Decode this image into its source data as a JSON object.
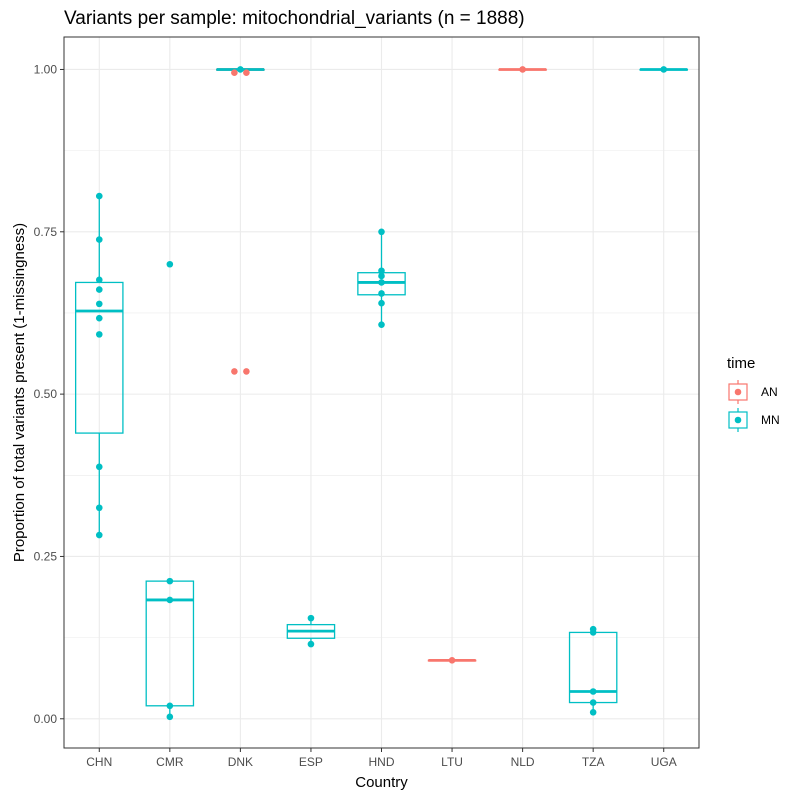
{
  "chart_data": {
    "type": "box",
    "title": "Variants per sample: mitochondrial_variants (n = 1888)",
    "xlabel": "Country",
    "ylabel": "Proportion of total variants present (1-missingness)",
    "categories": [
      "CHN",
      "CMR",
      "DNK",
      "ESP",
      "HND",
      "LTU",
      "NLD",
      "TZA",
      "UGA"
    ],
    "ylim": [
      -0.045,
      1.05
    ],
    "yticks": [
      0.0,
      0.25,
      0.5,
      0.75,
      1.0
    ],
    "ytick_labels": [
      "0.00",
      "0.25",
      "0.50",
      "0.75",
      "1.00"
    ],
    "grid": true,
    "legend": {
      "title": "time",
      "position": "right",
      "entries": [
        {
          "label": "AN",
          "color": "#F8766D"
        },
        {
          "label": "MN",
          "color": "#00BFC4"
        }
      ]
    },
    "series": [
      {
        "name": "AN",
        "color": "#F8766D",
        "boxes": [
          {
            "category": "DNK",
            "q1": 1.0,
            "median": 1.0,
            "q3": 1.0,
            "whisker_low": 1.0,
            "whisker_high": 1.0,
            "points": [
              0.995,
              0.995,
              0.535,
              0.535
            ]
          },
          {
            "category": "LTU",
            "q1": 0.09,
            "median": 0.09,
            "q3": 0.09,
            "whisker_low": 0.09,
            "whisker_high": 0.09,
            "points": [
              0.09
            ]
          },
          {
            "category": "NLD",
            "q1": 1.0,
            "median": 1.0,
            "q3": 1.0,
            "whisker_low": 1.0,
            "whisker_high": 1.0,
            "points": [
              1.0
            ]
          }
        ]
      },
      {
        "name": "MN",
        "color": "#00BFC4",
        "boxes": [
          {
            "category": "CHN",
            "q1": 0.44,
            "median": 0.628,
            "q3": 0.672,
            "whisker_low": 0.283,
            "whisker_high": 0.805,
            "points": [
              0.805,
              0.738,
              0.676,
              0.661,
              0.639,
              0.617,
              0.592,
              0.388,
              0.325,
              0.283
            ]
          },
          {
            "category": "CMR",
            "q1": 0.02,
            "median": 0.183,
            "q3": 0.212,
            "whisker_low": 0.003,
            "whisker_high": 0.212,
            "points": [
              0.7,
              0.212,
              0.183,
              0.02,
              0.003
            ]
          },
          {
            "category": "DNK",
            "q1": 1.0,
            "median": 1.0,
            "q3": 1.0,
            "whisker_low": 1.0,
            "whisker_high": 1.0,
            "points": [
              1.0
            ]
          },
          {
            "category": "ESP",
            "q1": 0.124,
            "median": 0.135,
            "q3": 0.145,
            "whisker_low": 0.115,
            "whisker_high": 0.155,
            "points": [
              0.155,
              0.115
            ]
          },
          {
            "category": "HND",
            "q1": 0.653,
            "median": 0.672,
            "q3": 0.687,
            "whisker_low": 0.607,
            "whisker_high": 0.75,
            "points": [
              0.75,
              0.69,
              0.682,
              0.672,
              0.655,
              0.64,
              0.607
            ]
          },
          {
            "category": "TZA",
            "q1": 0.025,
            "median": 0.042,
            "q3": 0.133,
            "whisker_low": 0.01,
            "whisker_high": 0.138,
            "points": [
              0.138,
              0.133,
              0.042,
              0.025,
              0.01
            ]
          },
          {
            "category": "UGA",
            "q1": 1.0,
            "median": 1.0,
            "q3": 1.0,
            "whisker_low": 1.0,
            "whisker_high": 1.0,
            "points": [
              1.0
            ]
          }
        ]
      }
    ]
  }
}
